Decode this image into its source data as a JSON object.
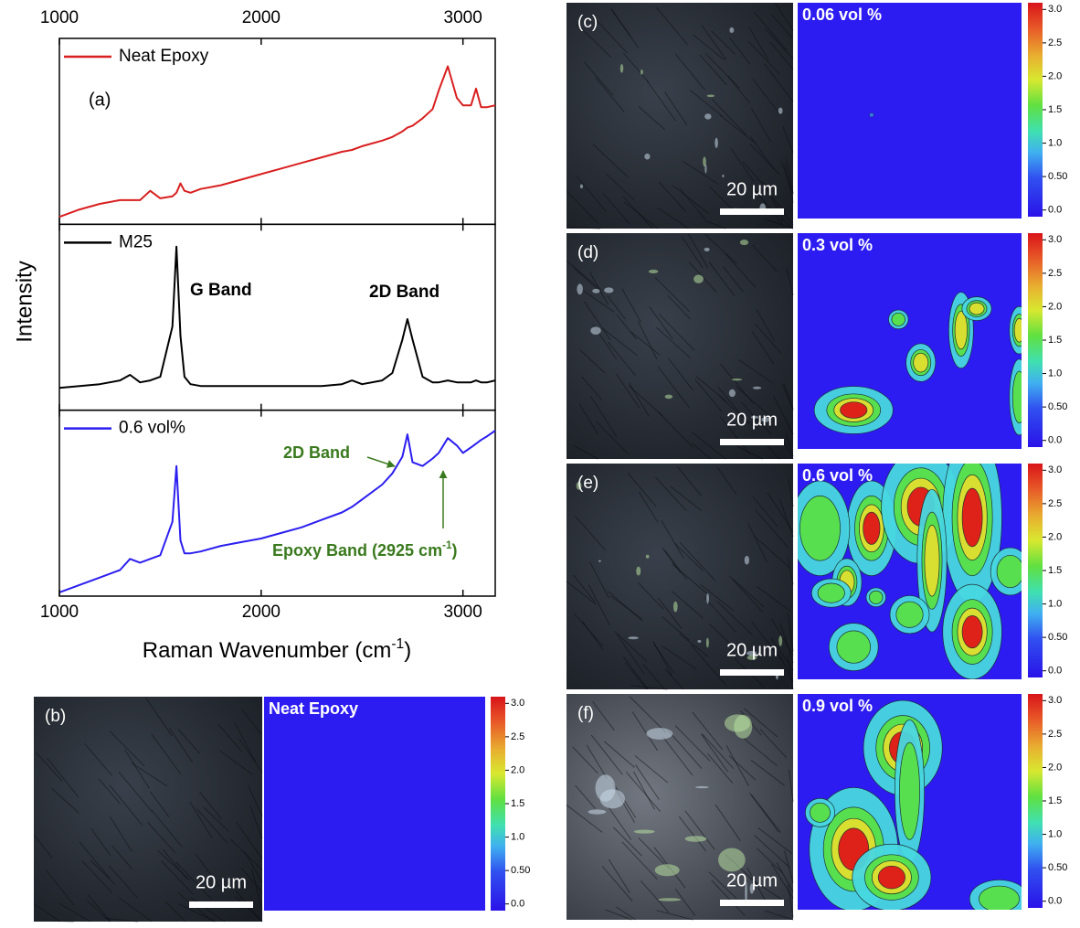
{
  "chart_data": {
    "type": "line",
    "x_label": [
      "Raman Wavenumber (cm",
      "-1",
      ")"
    ],
    "y_label": "Intensity",
    "x": [
      1000,
      1100,
      1200,
      1300,
      1350,
      1400,
      1450,
      1500,
      1560,
      1580,
      1600,
      1620,
      1650,
      1700,
      1800,
      1900,
      2000,
      2100,
      2200,
      2300,
      2400,
      2450,
      2500,
      2600,
      2650,
      2700,
      2725,
      2750,
      2800,
      2850,
      2880,
      2925,
      2970,
      3000,
      3040,
      3065,
      3090,
      3120,
      3160
    ],
    "xlim": [
      1000,
      3160
    ],
    "xticks": [
      1000,
      2000,
      3000
    ],
    "ylim": [
      0,
      100
    ],
    "series": [
      {
        "name": "Neat Epoxy",
        "color": "#d91f1f",
        "values": [
          4,
          8,
          11,
          13,
          13,
          13,
          18,
          14,
          15,
          17,
          22,
          18,
          17,
          19,
          21,
          24,
          27,
          30,
          33,
          36,
          39,
          40,
          42,
          45,
          47,
          50,
          52,
          53,
          57,
          62,
          72,
          85,
          68,
          64,
          64,
          73,
          63,
          63,
          64
        ]
      },
      {
        "name": "M25",
        "color": "#000000",
        "values": [
          12,
          13,
          14,
          16,
          19,
          15,
          16,
          18,
          45,
          88,
          40,
          18,
          14,
          13,
          13,
          13,
          13,
          13,
          13,
          13,
          14,
          16,
          14,
          16,
          20,
          38,
          49,
          38,
          18,
          15,
          15,
          16,
          15,
          15,
          15,
          16,
          15,
          15,
          16
        ]
      },
      {
        "name": "0.6 vol%",
        "color": "#2b1ef0",
        "values": [
          2,
          6,
          10,
          14,
          20,
          18,
          20,
          22,
          40,
          70,
          30,
          23,
          23,
          24,
          27,
          29,
          31,
          34,
          37,
          41,
          45,
          48,
          52,
          60,
          66,
          75,
          87,
          72,
          70,
          74,
          77,
          85,
          81,
          77,
          80,
          82,
          84,
          86,
          89
        ]
      }
    ],
    "annotations": [
      "(a)",
      "G Band",
      "2D Band",
      "2D Band",
      [
        "Epoxy Band (2925 cm",
        "-1",
        ")"
      ]
    ]
  },
  "maps": [
    {
      "label": "(b)",
      "title": "Neat Epoxy",
      "scale_bar": "20 µm"
    },
    {
      "label": "(c)",
      "title": "0.06 vol %",
      "scale_bar": "20 µm"
    },
    {
      "label": "(d)",
      "title": "0.3 vol %",
      "scale_bar": "20 µm"
    },
    {
      "label": "(e)",
      "title": "0.6 vol %",
      "scale_bar": "20 µm"
    },
    {
      "label": "(f)",
      "title": "0.9 vol %",
      "scale_bar": "20 µm"
    }
  ],
  "colorbar": {
    "lim": [
      -0.1,
      3.1
    ],
    "ticks": [
      {
        "value": 0,
        "label": "0.0"
      },
      {
        "value": 0.5,
        "label": "0.50"
      },
      {
        "value": 1,
        "label": "1.0"
      },
      {
        "value": 1.5,
        "label": "1.5"
      },
      {
        "value": 2,
        "label": "2.0"
      },
      {
        "value": 2.5,
        "label": "2.5"
      },
      {
        "value": 3,
        "label": "3.0"
      }
    ]
  }
}
